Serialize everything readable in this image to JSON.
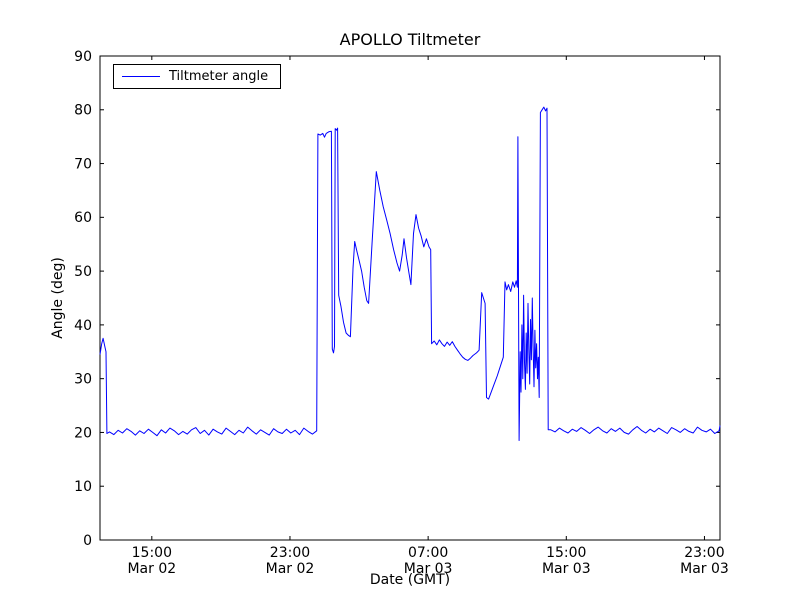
{
  "figure": {
    "background": "#ffffff"
  },
  "chart_data": {
    "type": "line",
    "title": "APOLLO Tiltmeter",
    "xlabel": "Date (GMT)",
    "ylabel": "Angle (deg)",
    "line_color": "#0000ff",
    "axis_color": "#000000",
    "grid": false,
    "legend_position": "upper left",
    "x_unit": "hours since Mar 02 12:00 GMT",
    "xlim_hours": [
      0,
      35.9
    ],
    "ylim": [
      0,
      90
    ],
    "yticks": [
      0,
      10,
      20,
      30,
      40,
      50,
      60,
      70,
      80,
      90
    ],
    "xticks": [
      {
        "t": 3,
        "time": "15:00",
        "date": "Mar 02"
      },
      {
        "t": 11,
        "time": "23:00",
        "date": "Mar 02"
      },
      {
        "t": 19,
        "time": "07:00",
        "date": "Mar 03"
      },
      {
        "t": 27,
        "time": "15:00",
        "date": "Mar 03"
      },
      {
        "t": 35,
        "time": "23:00",
        "date": "Mar 03"
      }
    ],
    "series": [
      {
        "name": "Tiltmeter angle",
        "color": "#0000ff",
        "points": [
          [
            0,
            34.5
          ],
          [
            0.1,
            36.5
          ],
          [
            0.18,
            37.5
          ],
          [
            0.28,
            36.0
          ],
          [
            0.35,
            35.0
          ],
          [
            0.4,
            19.8
          ],
          [
            0.55,
            20.1
          ],
          [
            0.8,
            19.6
          ],
          [
            1.05,
            20.4
          ],
          [
            1.3,
            19.9
          ],
          [
            1.55,
            20.7
          ],
          [
            1.8,
            20.2
          ],
          [
            2.05,
            19.5
          ],
          [
            2.3,
            20.3
          ],
          [
            2.55,
            19.8
          ],
          [
            2.8,
            20.6
          ],
          [
            3.05,
            20.0
          ],
          [
            3.3,
            19.4
          ],
          [
            3.55,
            20.5
          ],
          [
            3.8,
            19.9
          ],
          [
            4.05,
            20.8
          ],
          [
            4.3,
            20.3
          ],
          [
            4.55,
            19.6
          ],
          [
            4.8,
            20.2
          ],
          [
            5.05,
            19.7
          ],
          [
            5.3,
            20.5
          ],
          [
            5.55,
            20.9
          ],
          [
            5.8,
            19.8
          ],
          [
            6.05,
            20.4
          ],
          [
            6.3,
            19.5
          ],
          [
            6.55,
            20.6
          ],
          [
            6.8,
            20.1
          ],
          [
            7.05,
            19.7
          ],
          [
            7.3,
            20.8
          ],
          [
            7.55,
            20.2
          ],
          [
            7.8,
            19.6
          ],
          [
            8.05,
            20.4
          ],
          [
            8.3,
            19.9
          ],
          [
            8.55,
            21.0
          ],
          [
            8.8,
            20.3
          ],
          [
            9.05,
            19.7
          ],
          [
            9.3,
            20.5
          ],
          [
            9.55,
            20.0
          ],
          [
            9.8,
            19.5
          ],
          [
            10.05,
            20.7
          ],
          [
            10.3,
            20.1
          ],
          [
            10.55,
            19.8
          ],
          [
            10.8,
            20.6
          ],
          [
            11.05,
            19.9
          ],
          [
            11.3,
            20.4
          ],
          [
            11.55,
            19.6
          ],
          [
            11.8,
            20.8
          ],
          [
            12.05,
            20.2
          ],
          [
            12.3,
            19.7
          ],
          [
            12.55,
            20.3
          ],
          [
            12.62,
            75.5
          ],
          [
            12.75,
            75.3
          ],
          [
            12.9,
            75.6
          ],
          [
            13.0,
            74.9
          ],
          [
            13.1,
            75.6
          ],
          [
            13.25,
            75.9
          ],
          [
            13.4,
            76.0
          ],
          [
            13.45,
            35.5
          ],
          [
            13.52,
            34.8
          ],
          [
            13.58,
            36.0
          ],
          [
            13.62,
            76.5
          ],
          [
            13.7,
            76.2
          ],
          [
            13.76,
            76.6
          ],
          [
            13.82,
            45.5
          ],
          [
            13.95,
            43.5
          ],
          [
            14.1,
            40.5
          ],
          [
            14.25,
            38.5
          ],
          [
            14.4,
            38.0
          ],
          [
            14.5,
            37.8
          ],
          [
            14.65,
            50.5
          ],
          [
            14.75,
            55.5
          ],
          [
            14.85,
            54.0
          ],
          [
            15.0,
            52.0
          ],
          [
            15.15,
            50.0
          ],
          [
            15.3,
            47.0
          ],
          [
            15.45,
            44.5
          ],
          [
            15.55,
            44.0
          ],
          [
            15.75,
            55.0
          ],
          [
            16.0,
            68.5
          ],
          [
            16.2,
            65.0
          ],
          [
            16.4,
            62.0
          ],
          [
            16.6,
            59.5
          ],
          [
            16.8,
            57.0
          ],
          [
            17.0,
            54.0
          ],
          [
            17.2,
            51.5
          ],
          [
            17.35,
            50.0
          ],
          [
            17.5,
            53.0
          ],
          [
            17.6,
            56.0
          ],
          [
            17.75,
            52.5
          ],
          [
            17.9,
            49.5
          ],
          [
            18.0,
            47.5
          ],
          [
            18.15,
            57.0
          ],
          [
            18.3,
            60.5
          ],
          [
            18.45,
            58.0
          ],
          [
            18.6,
            56.5
          ],
          [
            18.75,
            54.5
          ],
          [
            18.9,
            56.0
          ],
          [
            19.05,
            54.5
          ],
          [
            19.15,
            54.0
          ],
          [
            19.2,
            36.5
          ],
          [
            19.35,
            37.0
          ],
          [
            19.5,
            36.3
          ],
          [
            19.65,
            37.2
          ],
          [
            19.8,
            36.5
          ],
          [
            19.95,
            36.0
          ],
          [
            20.1,
            36.8
          ],
          [
            20.25,
            36.2
          ],
          [
            20.4,
            36.9
          ],
          [
            20.55,
            36.0
          ],
          [
            20.7,
            35.3
          ],
          [
            20.85,
            34.6
          ],
          [
            21.0,
            34.0
          ],
          [
            21.15,
            33.6
          ],
          [
            21.3,
            33.4
          ],
          [
            21.45,
            33.8
          ],
          [
            21.6,
            34.3
          ],
          [
            21.8,
            34.8
          ],
          [
            21.95,
            35.3
          ],
          [
            22.1,
            46.0
          ],
          [
            22.2,
            45.0
          ],
          [
            22.3,
            44.0
          ],
          [
            22.38,
            26.5
          ],
          [
            22.5,
            26.2
          ],
          [
            22.65,
            27.5
          ],
          [
            22.8,
            28.8
          ],
          [
            23.0,
            30.5
          ],
          [
            23.2,
            32.5
          ],
          [
            23.35,
            34.0
          ],
          [
            23.45,
            48.0
          ],
          [
            23.55,
            46.5
          ],
          [
            23.65,
            47.5
          ],
          [
            23.78,
            46.2
          ],
          [
            23.9,
            48.0
          ],
          [
            24.0,
            47.0
          ],
          [
            24.1,
            48.2
          ],
          [
            24.17,
            47.0
          ],
          [
            24.2,
            75.0
          ],
          [
            24.27,
            18.5
          ],
          [
            24.33,
            35.0
          ],
          [
            24.38,
            27.5
          ],
          [
            24.43,
            40.0
          ],
          [
            24.48,
            30.0
          ],
          [
            24.53,
            45.5
          ],
          [
            24.58,
            33.0
          ],
          [
            24.63,
            28.0
          ],
          [
            24.68,
            38.5
          ],
          [
            24.73,
            31.0
          ],
          [
            24.78,
            44.0
          ],
          [
            24.83,
            35.5
          ],
          [
            24.88,
            29.0
          ],
          [
            24.93,
            41.0
          ],
          [
            24.98,
            33.5
          ],
          [
            25.03,
            45.0
          ],
          [
            25.08,
            36.0
          ],
          [
            25.13,
            28.5
          ],
          [
            25.18,
            39.0
          ],
          [
            25.23,
            32.0
          ],
          [
            25.28,
            36.5
          ],
          [
            25.33,
            30.0
          ],
          [
            25.38,
            34.0
          ],
          [
            25.43,
            26.5
          ],
          [
            25.5,
            79.5
          ],
          [
            25.6,
            80.0
          ],
          [
            25.7,
            80.5
          ],
          [
            25.8,
            79.8
          ],
          [
            25.88,
            80.3
          ],
          [
            25.95,
            20.5
          ],
          [
            26.1,
            20.5
          ],
          [
            26.35,
            20.1
          ],
          [
            26.6,
            20.8
          ],
          [
            26.85,
            20.3
          ],
          [
            27.1,
            19.9
          ],
          [
            27.35,
            20.6
          ],
          [
            27.6,
            20.2
          ],
          [
            27.85,
            20.9
          ],
          [
            28.1,
            20.4
          ],
          [
            28.35,
            19.8
          ],
          [
            28.6,
            20.5
          ],
          [
            28.85,
            21.0
          ],
          [
            29.1,
            20.3
          ],
          [
            29.35,
            19.9
          ],
          [
            29.6,
            20.7
          ],
          [
            29.85,
            20.2
          ],
          [
            30.1,
            20.8
          ],
          [
            30.35,
            20.0
          ],
          [
            30.6,
            19.7
          ],
          [
            30.85,
            20.5
          ],
          [
            31.1,
            21.1
          ],
          [
            31.35,
            20.4
          ],
          [
            31.6,
            19.9
          ],
          [
            31.85,
            20.6
          ],
          [
            32.1,
            20.1
          ],
          [
            32.35,
            20.8
          ],
          [
            32.6,
            20.3
          ],
          [
            32.85,
            19.8
          ],
          [
            33.1,
            20.9
          ],
          [
            33.35,
            20.5
          ],
          [
            33.6,
            20.0
          ],
          [
            33.85,
            20.7
          ],
          [
            34.1,
            20.2
          ],
          [
            34.35,
            19.9
          ],
          [
            34.6,
            21.0
          ],
          [
            34.85,
            20.4
          ],
          [
            35.1,
            20.1
          ],
          [
            35.35,
            20.6
          ],
          [
            35.6,
            19.8
          ],
          [
            35.85,
            20.3
          ],
          [
            35.9,
            21.3
          ]
        ]
      }
    ]
  }
}
